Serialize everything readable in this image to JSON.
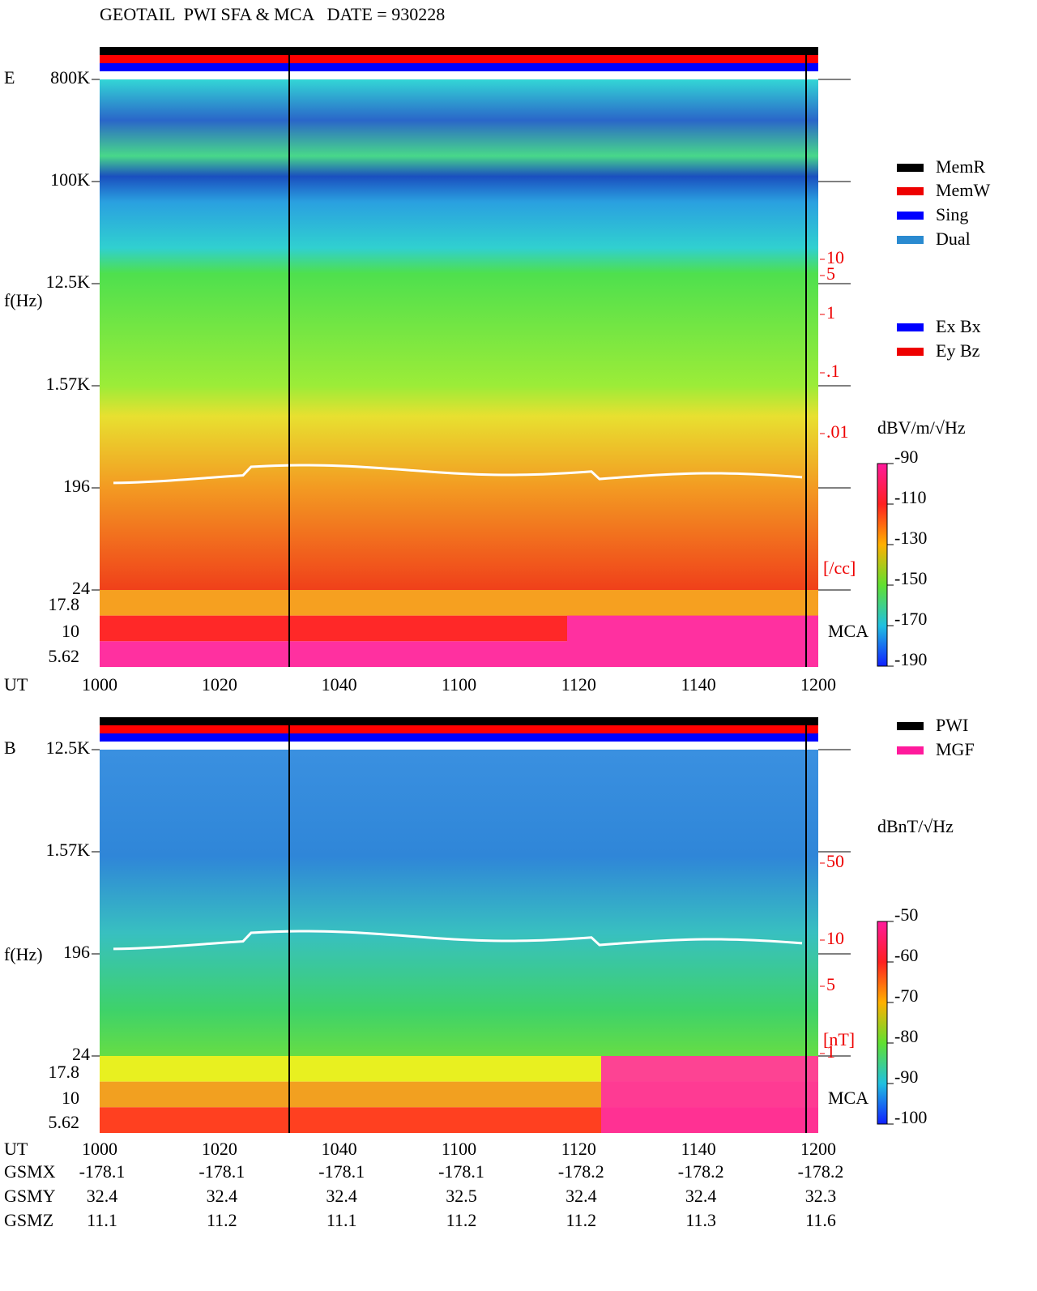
{
  "header": {
    "title": "GEOTAIL  PWI SFA & MCA   DATE = 930228"
  },
  "panels": [
    {
      "label": "E",
      "ylabel": "f(Hz)",
      "yticks": [
        "800K",
        "100K",
        "12.5K",
        "1.57K",
        "196",
        "24"
      ],
      "mca_ticks": [
        "17.8",
        "10",
        "5.62"
      ],
      "mca_label": "MCA",
      "right_ticks": [
        "10",
        "5",
        "1",
        ".1",
        ".01"
      ],
      "right_unit": "[/cc]",
      "colorbar": {
        "unit": "dBV/m/√Hz",
        "ticks": [
          "-90",
          "-110",
          "-130",
          "-150",
          "-170",
          "-190"
        ]
      },
      "legend": [
        "MemR",
        "MemW",
        "Sing",
        "Dual"
      ],
      "legend2": [
        "Ex Bx",
        "Ey Bz"
      ],
      "time_axis": {
        "label": "UT",
        "ticks": [
          "1000",
          "1020",
          "1040",
          "1100",
          "1120",
          "1140",
          "1200"
        ]
      }
    },
    {
      "label": "B",
      "ylabel": "f(Hz)",
      "yticks": [
        "12.5K",
        "1.57K",
        "196",
        "24"
      ],
      "mca_ticks": [
        "17.8",
        "10",
        "5.62"
      ],
      "mca_label": "MCA",
      "right_ticks": [
        "50",
        "10",
        "5",
        "1"
      ],
      "right_unit": "[nT]",
      "colorbar": {
        "unit": "dBnT/√Hz",
        "ticks": [
          "-50",
          "-60",
          "-70",
          "-80",
          "-90",
          "-100"
        ]
      },
      "legend": [
        "PWI",
        "MGF"
      ],
      "legend2": [],
      "time_axis": {
        "label": "UT",
        "ticks": [
          "1000",
          "1020",
          "1040",
          "1100",
          "1120",
          "1140",
          "1200"
        ]
      }
    }
  ],
  "orbit": [
    {
      "label": "GSMX",
      "values": [
        "-178.1",
        "-178.1",
        "-178.1",
        "-178.1",
        "-178.2",
        "-178.2",
        "-178.2"
      ]
    },
    {
      "label": "GSMY",
      "values": [
        "32.4",
        "32.4",
        "32.4",
        "32.5",
        "32.4",
        "32.4",
        "32.3"
      ]
    },
    {
      "label": "GSMZ",
      "values": [
        "11.1",
        "11.2",
        "11.1",
        "11.2",
        "11.2",
        "11.3",
        "11.6"
      ]
    }
  ]
}
